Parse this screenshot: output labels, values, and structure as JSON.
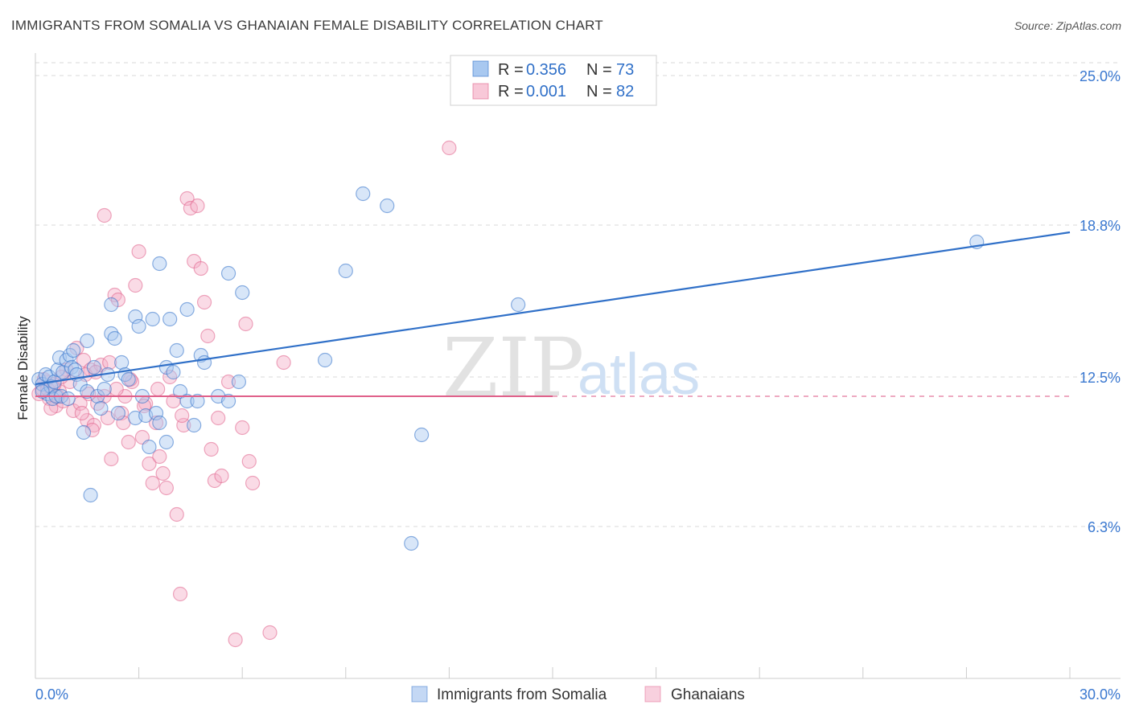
{
  "header": {
    "title": "IMMIGRANTS FROM SOMALIA VS GHANAIAN FEMALE DISABILITY CORRELATION CHART",
    "source": "Source: ZipAtlas.com"
  },
  "watermark": {
    "zip": "ZIP",
    "atlas": "atlas"
  },
  "colors": {
    "blue": "#3070c8",
    "blue_fill": "#a8c8f0",
    "pink": "#e0608a",
    "pink_fill": "#f4b0c8",
    "grid": "#d8d8d8",
    "tick_text": "#3a78d0"
  },
  "legend": {
    "r_label": "R =",
    "n_label": "N =",
    "series": [
      {
        "name": "Immigrants from Somalia",
        "r": "0.356",
        "n": "73"
      },
      {
        "name": "Ghanaians",
        "r": "0.001",
        "n": "82"
      }
    ]
  },
  "chart_data": {
    "type": "scatter",
    "title": "IMMIGRANTS FROM SOMALIA VS GHANAIAN FEMALE DISABILITY CORRELATION CHART",
    "xlabel": "",
    "ylabel": "Female Disability",
    "xlim": [
      0,
      30
    ],
    "ylim": [
      0,
      26.2
    ],
    "x_tick_labels": [
      "0.0%",
      "30.0%"
    ],
    "y_ticks": [
      {
        "value": 6.3,
        "label": "6.3%"
      },
      {
        "value": 12.5,
        "label": "12.5%"
      },
      {
        "value": 18.8,
        "label": "18.8%"
      },
      {
        "value": 25.0,
        "label": "25.0%"
      }
    ],
    "series": [
      {
        "name": "Immigrants from Somalia",
        "color": "blue",
        "trend": {
          "x0": 0.0,
          "y0": 12.2,
          "x1": 30.0,
          "y1": 18.5
        },
        "points": [
          [
            0.1,
            12.4
          ],
          [
            0.2,
            12.2
          ],
          [
            0.3,
            12.6
          ],
          [
            0.35,
            11.8
          ],
          [
            0.4,
            12.5
          ],
          [
            0.45,
            12.1
          ],
          [
            0.5,
            11.6
          ],
          [
            0.55,
            12.3
          ],
          [
            0.6,
            11.7
          ],
          [
            0.65,
            12.8
          ],
          [
            0.7,
            13.3
          ],
          [
            0.75,
            11.7
          ],
          [
            0.8,
            12.7
          ],
          [
            0.9,
            13.2
          ],
          [
            1.0,
            13.4
          ],
          [
            1.05,
            12.9
          ],
          [
            1.1,
            13.6
          ],
          [
            1.15,
            12.8
          ],
          [
            1.2,
            12.6
          ],
          [
            1.3,
            12.2
          ],
          [
            1.4,
            10.2
          ],
          [
            1.5,
            14.0
          ],
          [
            1.5,
            11.9
          ],
          [
            1.6,
            7.6
          ],
          [
            1.7,
            12.9
          ],
          [
            1.8,
            11.7
          ],
          [
            1.9,
            11.2
          ],
          [
            2.0,
            12.0
          ],
          [
            2.1,
            12.6
          ],
          [
            2.2,
            14.3
          ],
          [
            2.2,
            15.5
          ],
          [
            2.3,
            14.1
          ],
          [
            2.4,
            11.0
          ],
          [
            2.5,
            13.1
          ],
          [
            2.6,
            12.6
          ],
          [
            2.7,
            12.4
          ],
          [
            2.9,
            10.8
          ],
          [
            2.9,
            15.0
          ],
          [
            3.0,
            14.6
          ],
          [
            3.1,
            11.7
          ],
          [
            3.2,
            10.9
          ],
          [
            3.3,
            9.6
          ],
          [
            3.4,
            14.9
          ],
          [
            3.5,
            11.0
          ],
          [
            3.6,
            17.2
          ],
          [
            3.6,
            10.6
          ],
          [
            3.8,
            12.9
          ],
          [
            3.8,
            9.8
          ],
          [
            3.9,
            14.9
          ],
          [
            4.0,
            12.7
          ],
          [
            4.1,
            13.6
          ],
          [
            4.2,
            11.9
          ],
          [
            4.4,
            15.3
          ],
          [
            4.4,
            11.5
          ],
          [
            4.6,
            10.5
          ],
          [
            4.7,
            11.5
          ],
          [
            4.8,
            13.4
          ],
          [
            4.9,
            13.1
          ],
          [
            5.3,
            11.7
          ],
          [
            5.6,
            11.5
          ],
          [
            5.6,
            16.8
          ],
          [
            5.9,
            12.3
          ],
          [
            6.0,
            16.0
          ],
          [
            8.4,
            13.2
          ],
          [
            9.0,
            16.9
          ],
          [
            9.5,
            20.1
          ],
          [
            10.2,
            19.6
          ],
          [
            10.9,
            5.6
          ],
          [
            11.2,
            10.1
          ],
          [
            14.0,
            15.5
          ],
          [
            27.3,
            18.1
          ],
          [
            0.2,
            11.9
          ],
          [
            0.95,
            11.6
          ]
        ]
      },
      {
        "name": "Ghanaians",
        "color": "pink",
        "trend": {
          "x0": 0.0,
          "y0": 11.7,
          "x1": 15.0,
          "y1": 11.7,
          "dashed_to": 30.0
        },
        "points": [
          [
            0.1,
            11.8
          ],
          [
            0.2,
            12.0
          ],
          [
            0.3,
            12.3
          ],
          [
            0.4,
            11.6
          ],
          [
            0.5,
            12.1
          ],
          [
            0.6,
            11.3
          ],
          [
            0.7,
            11.9
          ],
          [
            0.8,
            11.5
          ],
          [
            0.9,
            12.8
          ],
          [
            1.0,
            12.3
          ],
          [
            1.1,
            11.1
          ],
          [
            1.2,
            13.7
          ],
          [
            1.3,
            11.4
          ],
          [
            1.4,
            13.2
          ],
          [
            1.5,
            10.7
          ],
          [
            1.6,
            12.8
          ],
          [
            1.7,
            10.5
          ],
          [
            1.8,
            11.4
          ],
          [
            1.9,
            13.0
          ],
          [
            2.0,
            11.7
          ],
          [
            2.1,
            10.8
          ],
          [
            2.2,
            9.1
          ],
          [
            2.3,
            15.9
          ],
          [
            2.4,
            15.7
          ],
          [
            2.5,
            11.0
          ],
          [
            2.6,
            11.7
          ],
          [
            2.7,
            9.8
          ],
          [
            2.8,
            12.3
          ],
          [
            2.9,
            16.3
          ],
          [
            3.0,
            17.7
          ],
          [
            3.1,
            10.0
          ],
          [
            3.2,
            11.4
          ],
          [
            3.3,
            8.9
          ],
          [
            3.4,
            8.1
          ],
          [
            3.5,
            10.6
          ],
          [
            3.6,
            9.2
          ],
          [
            3.7,
            8.5
          ],
          [
            3.8,
            7.9
          ],
          [
            3.9,
            12.5
          ],
          [
            4.0,
            11.5
          ],
          [
            4.1,
            6.8
          ],
          [
            4.2,
            3.5
          ],
          [
            4.3,
            10.5
          ],
          [
            4.4,
            19.9
          ],
          [
            4.5,
            19.5
          ],
          [
            4.6,
            17.3
          ],
          [
            4.7,
            19.6
          ],
          [
            4.8,
            17.0
          ],
          [
            4.9,
            15.6
          ],
          [
            5.0,
            14.2
          ],
          [
            5.1,
            9.5
          ],
          [
            5.2,
            8.2
          ],
          [
            5.3,
            10.8
          ],
          [
            5.4,
            8.4
          ],
          [
            5.6,
            12.3
          ],
          [
            5.8,
            1.6
          ],
          [
            6.0,
            10.4
          ],
          [
            6.1,
            14.7
          ],
          [
            6.2,
            9.0
          ],
          [
            6.3,
            8.1
          ],
          [
            6.8,
            1.9
          ],
          [
            7.2,
            13.1
          ],
          [
            2.0,
            19.2
          ],
          [
            12.0,
            22.0
          ],
          [
            0.25,
            12.4
          ],
          [
            0.35,
            12.0
          ],
          [
            0.45,
            11.2
          ],
          [
            0.55,
            12.2
          ],
          [
            0.65,
            11.7
          ],
          [
            0.75,
            12.5
          ],
          [
            1.35,
            11.0
          ],
          [
            1.45,
            12.6
          ],
          [
            1.55,
            11.8
          ],
          [
            1.65,
            10.3
          ],
          [
            1.75,
            12.7
          ],
          [
            2.15,
            13.1
          ],
          [
            2.35,
            12.0
          ],
          [
            2.55,
            10.6
          ],
          [
            2.75,
            12.4
          ],
          [
            3.15,
            11.3
          ],
          [
            3.55,
            12.0
          ],
          [
            4.25,
            10.9
          ]
        ]
      }
    ],
    "legend_position": "top-center",
    "grid": true
  }
}
